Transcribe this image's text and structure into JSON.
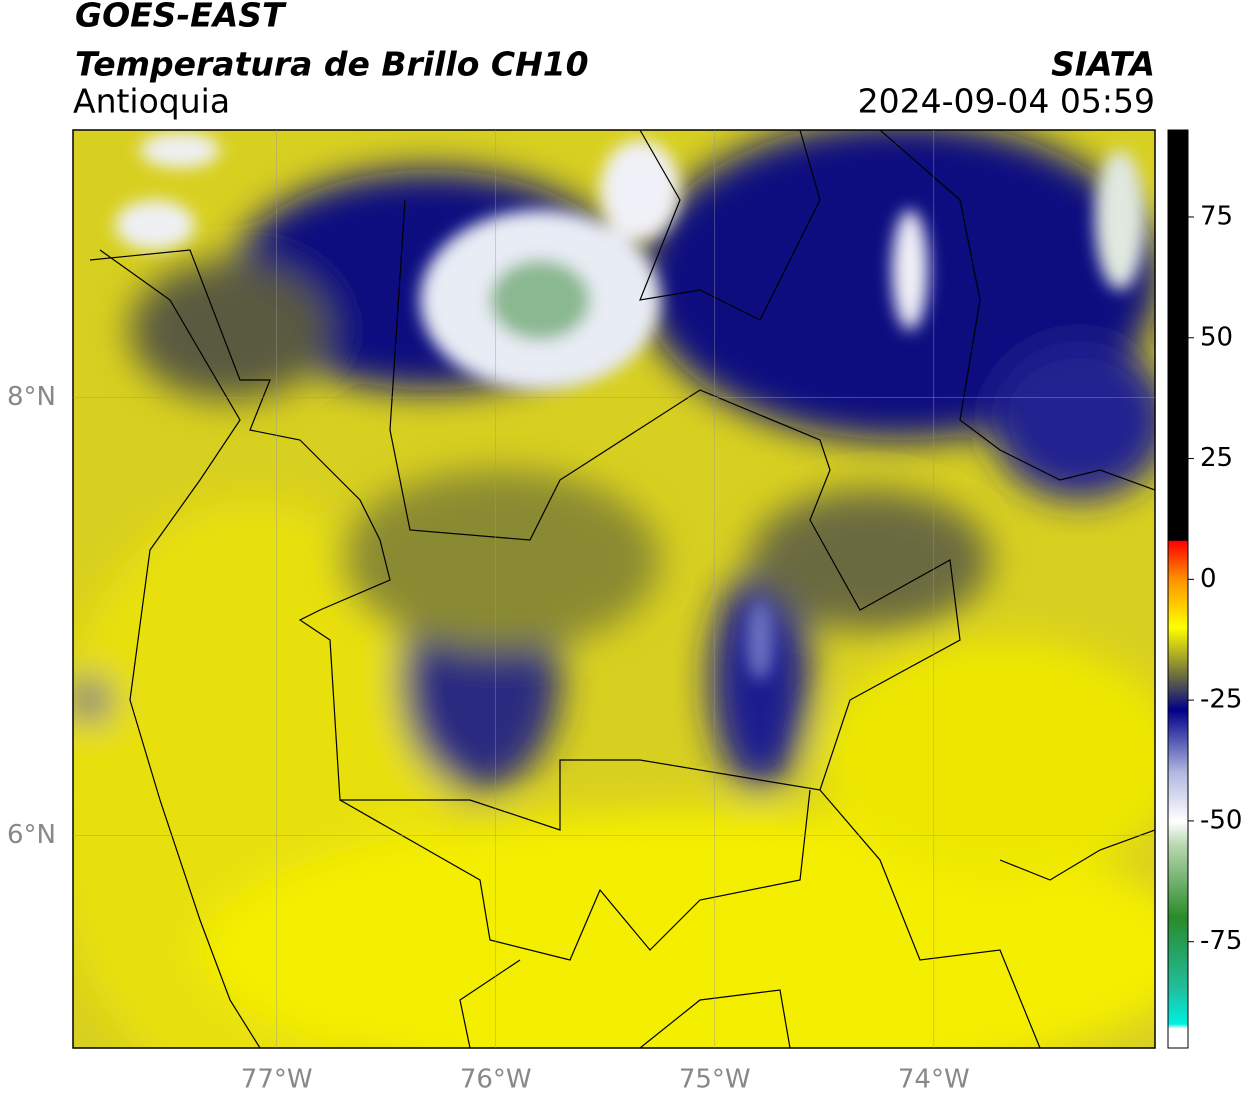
{
  "header": {
    "title": "GOES-EAST",
    "subtitle": "Temperatura de Brillo CH10",
    "region": "Antioquia",
    "source": "SIATA",
    "timestamp": "2024-09-04 05:59"
  },
  "map": {
    "lon_range": [
      -77.93,
      -72.99
    ],
    "lat_range": [
      5.03,
      9.22
    ],
    "lon_ticks": [
      {
        "value": -77,
        "label": "77°W"
      },
      {
        "value": -76,
        "label": "76°W"
      },
      {
        "value": -75,
        "label": "75°W"
      },
      {
        "value": -74,
        "label": "74°W"
      }
    ],
    "lat_ticks": [
      {
        "value": 8,
        "label": "8°N"
      },
      {
        "value": 6,
        "label": "6°N"
      }
    ],
    "grid": true
  },
  "colorbar": {
    "range": [
      -97,
      93
    ],
    "ticks": [
      75,
      50,
      25,
      0,
      -25,
      -50,
      -75
    ]
  }
}
